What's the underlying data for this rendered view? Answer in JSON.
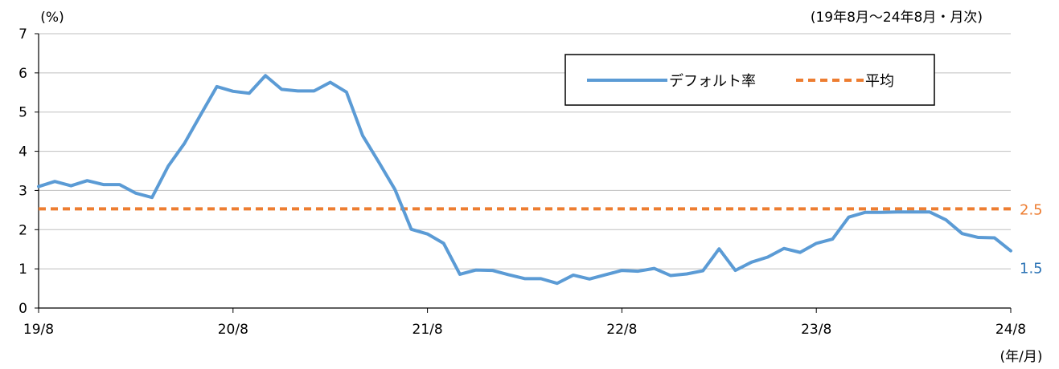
{
  "chart_data": {
    "type": "line",
    "y_unit_label": "(%)",
    "x_unit_label": "(年/月)",
    "period_note": "(19年8月～24年8月・月次)",
    "ylim": [
      0,
      7
    ],
    "y_ticks": [
      "0",
      "1",
      "2",
      "3",
      "4",
      "5",
      "6",
      "7"
    ],
    "x_tick_labels": [
      "19/8",
      "20/8",
      "21/8",
      "22/8",
      "23/8",
      "24/8"
    ],
    "grid": "horizontal",
    "legend_position": "top-right",
    "series": [
      {
        "name": "デフォルト率",
        "color": "#5b9bd5",
        "end_label": "1.5",
        "end_label_color": "#2e75b6",
        "values": [
          3.1,
          3.23,
          3.12,
          3.25,
          3.15,
          3.15,
          2.93,
          2.82,
          3.62,
          4.2,
          4.93,
          5.65,
          5.53,
          5.48,
          5.93,
          5.58,
          5.54,
          5.54,
          5.76,
          5.51,
          4.4,
          3.72,
          3.02,
          2.01,
          1.89,
          1.65,
          0.86,
          0.97,
          0.96,
          0.85,
          0.75,
          0.75,
          0.63,
          0.84,
          0.74,
          0.85,
          0.96,
          0.94,
          1.01,
          0.83,
          0.87,
          0.95,
          1.51,
          0.96,
          1.17,
          1.3,
          1.52,
          1.42,
          1.65,
          1.76,
          2.32,
          2.44,
          2.44,
          2.45,
          2.45,
          2.45,
          2.25,
          1.9,
          1.8,
          1.79,
          1.46
        ]
      },
      {
        "name": "平均",
        "color": "#ed7d31",
        "style": "dashed",
        "end_label": "2.5",
        "end_label_color": "#ed7d31",
        "values": [
          2.53
        ]
      }
    ]
  }
}
